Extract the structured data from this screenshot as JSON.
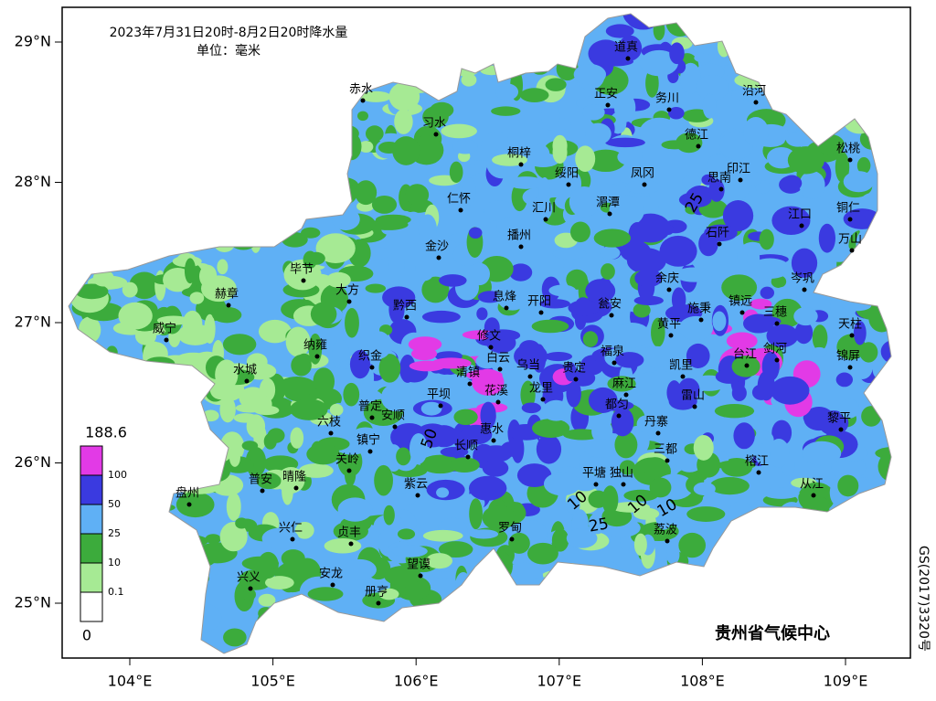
{
  "map": {
    "title": "2023年7月31日20时-8月2日20时降水量",
    "unit": "单位：毫米",
    "lon_ticks": [
      {
        "value": 104,
        "label": "104°E"
      },
      {
        "value": 105,
        "label": "105°E"
      },
      {
        "value": 106,
        "label": "106°E"
      },
      {
        "value": 107,
        "label": "107°E"
      },
      {
        "value": 108,
        "label": "108°E"
      },
      {
        "value": 109,
        "label": "109°E"
      }
    ],
    "lat_ticks": [
      {
        "value": 29,
        "label": "29°N"
      },
      {
        "value": 28,
        "label": "28°N"
      },
      {
        "value": 27,
        "label": "27°N"
      },
      {
        "value": 26,
        "label": "26°N"
      },
      {
        "value": 25,
        "label": "25°N"
      }
    ],
    "cities": [
      "赤水",
      "习水",
      "道真",
      "正安",
      "务川",
      "沿河",
      "桐梓",
      "德江",
      "松桃",
      "绥阳",
      "凤冈",
      "思南",
      "印江",
      "仁怀",
      "汇川",
      "播州",
      "湄潭",
      "石阡",
      "江口",
      "铜仁",
      "万山",
      "金沙",
      "毕节",
      "大方",
      "赫章",
      "黔西",
      "息烽",
      "开阳",
      "瓮安",
      "余庆",
      "施秉",
      "镇远",
      "岑巩",
      "三穗",
      "天柱",
      "黄平",
      "威宁",
      "纳雍",
      "织金",
      "修文",
      "白云",
      "乌当",
      "福泉",
      "剑河",
      "台江",
      "锦屏",
      "水城",
      "清镇",
      "贵定",
      "凯里",
      "麻江",
      "雷山",
      "平坝",
      "花溪",
      "龙里",
      "都匀",
      "普定",
      "安顺",
      "六枝",
      "丹寨",
      "黎平",
      "镇宁",
      "惠水",
      "长顺",
      "三都",
      "榕江",
      "关岭",
      "平塘",
      "独山",
      "从江",
      "普安",
      "晴隆",
      "紫云",
      "盘州",
      "罗甸",
      "荔波",
      "兴仁",
      "贞丰",
      "望谟",
      "安龙",
      "兴义",
      "册亨"
    ],
    "contour_labels": [
      25,
      50,
      10,
      10,
      10,
      25
    ],
    "legend": {
      "levels": [
        0,
        0.1,
        10,
        25,
        50,
        100,
        188.6
      ],
      "colors": [
        "#ffffff",
        "#a6ea94",
        "#3cab3c",
        "#5fb0f5",
        "#3a3ae0",
        "#e23ae6"
      ]
    },
    "credit": "贵州省气候中心",
    "approval": "GS(2017)3320号"
  }
}
